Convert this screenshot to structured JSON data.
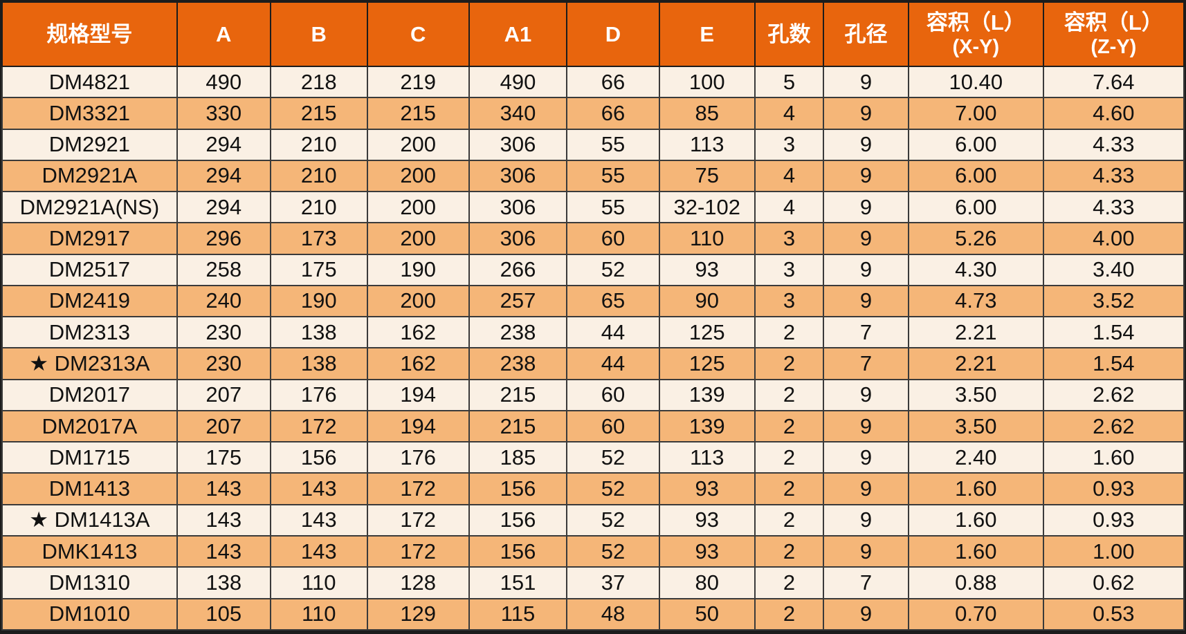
{
  "colors": {
    "header_bg": "#e8650d",
    "header_text": "#ffffff",
    "row_bg": "#faf0e4",
    "row_alt_bg": "#f5b678",
    "grid": "#3a3a3a",
    "cell_text": "#111111"
  },
  "table": {
    "header_keys": [
      "model",
      "a",
      "b",
      "c",
      "a1",
      "d",
      "e",
      "hole-count",
      "hole-diameter",
      "volume-xy",
      "volume-zy"
    ],
    "headers": [
      {
        "lines": [
          "规格型号"
        ]
      },
      {
        "lines": [
          "A"
        ]
      },
      {
        "lines": [
          "B"
        ]
      },
      {
        "lines": [
          "C"
        ]
      },
      {
        "lines": [
          "A1"
        ]
      },
      {
        "lines": [
          "D"
        ]
      },
      {
        "lines": [
          "E"
        ]
      },
      {
        "lines": [
          "孔数"
        ]
      },
      {
        "lines": [
          "孔径"
        ]
      },
      {
        "lines": [
          "容积（L）",
          "(X-Y)"
        ]
      },
      {
        "lines": [
          "容积（L）",
          "(Z-Y)"
        ]
      }
    ]
  },
  "chart_data": {
    "type": "table",
    "title": "",
    "columns": [
      "规格型号",
      "A",
      "B",
      "C",
      "A1",
      "D",
      "E",
      "孔数",
      "孔径",
      "容积（L）(X-Y)",
      "容积（L）(Z-Y)"
    ],
    "rows": [
      [
        "DM4821",
        "490",
        "218",
        "219",
        "490",
        "66",
        "100",
        "5",
        "9",
        "10.40",
        "7.64"
      ],
      [
        "DM3321",
        "330",
        "215",
        "215",
        "340",
        "66",
        "85",
        "4",
        "9",
        "7.00",
        "4.60"
      ],
      [
        "DM2921",
        "294",
        "210",
        "200",
        "306",
        "55",
        "113",
        "3",
        "9",
        "6.00",
        "4.33"
      ],
      [
        "DM2921A",
        "294",
        "210",
        "200",
        "306",
        "55",
        "75",
        "4",
        "9",
        "6.00",
        "4.33"
      ],
      [
        "DM2921A(NS)",
        "294",
        "210",
        "200",
        "306",
        "55",
        "32-102",
        "4",
        "9",
        "6.00",
        "4.33"
      ],
      [
        "DM2917",
        "296",
        "173",
        "200",
        "306",
        "60",
        "110",
        "3",
        "9",
        "5.26",
        "4.00"
      ],
      [
        "DM2517",
        "258",
        "175",
        "190",
        "266",
        "52",
        "93",
        "3",
        "9",
        "4.30",
        "3.40"
      ],
      [
        "DM2419",
        "240",
        "190",
        "200",
        "257",
        "65",
        "90",
        "3",
        "9",
        "4.73",
        "3.52"
      ],
      [
        "DM2313",
        "230",
        "138",
        "162",
        "238",
        "44",
        "125",
        "2",
        "7",
        "2.21",
        "1.54"
      ],
      [
        "★ DM2313A",
        "230",
        "138",
        "162",
        "238",
        "44",
        "125",
        "2",
        "7",
        "2.21",
        "1.54"
      ],
      [
        "DM2017",
        "207",
        "176",
        "194",
        "215",
        "60",
        "139",
        "2",
        "9",
        "3.50",
        "2.62"
      ],
      [
        "DM2017A",
        "207",
        "172",
        "194",
        "215",
        "60",
        "139",
        "2",
        "9",
        "3.50",
        "2.62"
      ],
      [
        "DM1715",
        "175",
        "156",
        "176",
        "185",
        "52",
        "113",
        "2",
        "9",
        "2.40",
        "1.60"
      ],
      [
        "DM1413",
        "143",
        "143",
        "172",
        "156",
        "52",
        "93",
        "2",
        "9",
        "1.60",
        "0.93"
      ],
      [
        "★ DM1413A",
        "143",
        "143",
        "172",
        "156",
        "52",
        "93",
        "2",
        "9",
        "1.60",
        "0.93"
      ],
      [
        "DMK1413",
        "143",
        "143",
        "172",
        "156",
        "52",
        "93",
        "2",
        "9",
        "1.60",
        "1.00"
      ],
      [
        "DM1310",
        "138",
        "110",
        "128",
        "151",
        "37",
        "80",
        "2",
        "7",
        "0.88",
        "0.62"
      ],
      [
        "DM1010",
        "105",
        "110",
        "129",
        "115",
        "48",
        "50",
        "2",
        "9",
        "0.70",
        "0.53"
      ]
    ]
  }
}
